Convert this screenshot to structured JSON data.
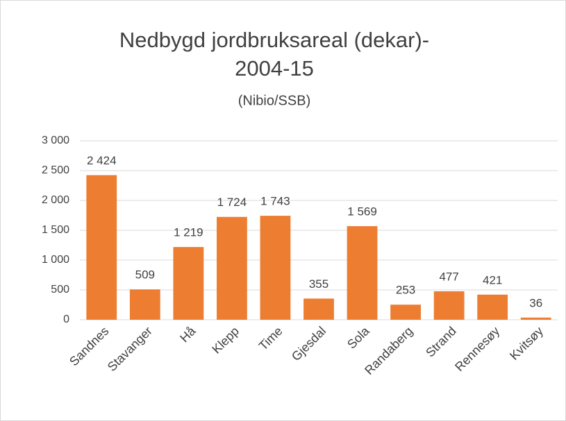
{
  "chart_data": {
    "type": "bar",
    "title": [
      "Nedbygd jordbruksareal (dekar)-",
      "2004-15"
    ],
    "subtitle": "(Nibio/SSB)",
    "categories": [
      "Sandnes",
      "Stavanger",
      "Hå",
      "Klepp",
      "Time",
      "Gjesdal",
      "Sola",
      "Randaberg",
      "Strand",
      "Rennesøy",
      "Kvitsøy"
    ],
    "values": [
      2424,
      509,
      1219,
      1724,
      1743,
      355,
      1569,
      253,
      477,
      421,
      36
    ],
    "value_labels": [
      "2 424",
      "509",
      "1 219",
      "1 724",
      "1 743",
      "355",
      "1 569",
      "253",
      "477",
      "421",
      "36"
    ],
    "color": "#ed7d31",
    "ylim": [
      0,
      3000
    ],
    "yticks": [
      0,
      500,
      {
        "value": 1000,
        "label": "1 000"
      },
      {
        "value": 1500,
        "label": "1 500"
      },
      {
        "value": 2000,
        "label": "2 000"
      },
      {
        "value": 2500,
        "label": "2 500"
      },
      {
        "value": 3000,
        "label": "3 000"
      }
    ],
    "grid": true
  }
}
